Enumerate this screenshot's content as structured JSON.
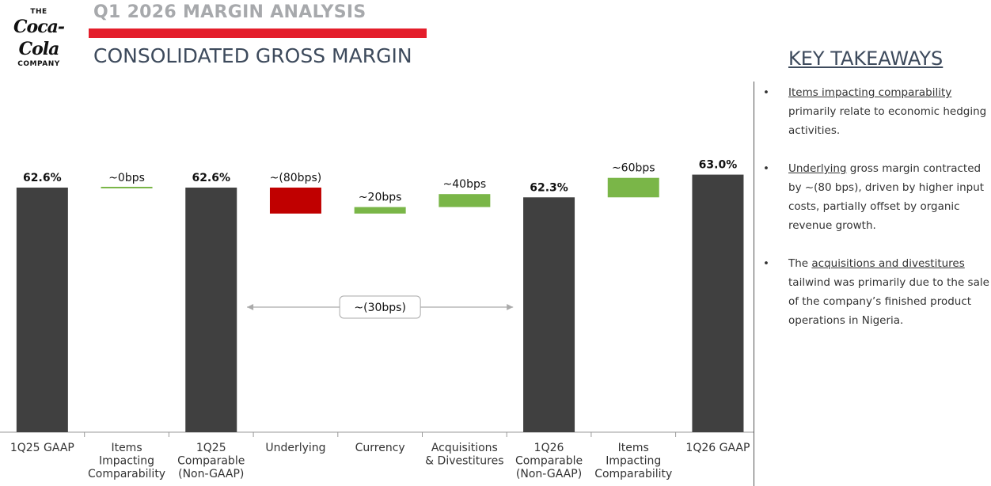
{
  "logo": {
    "line1": "THE",
    "line2": "Coca-Cola",
    "line3": "COMPANY"
  },
  "header": {
    "kicker": "Q1 2026 MARGIN ANALYSIS",
    "headline": "CONSOLIDATED GROSS MARGIN"
  },
  "colors": {
    "total": "#404040",
    "decrease": "#c00000",
    "increase": "#7ab648",
    "accent": "#e41e2b"
  },
  "takeaways": {
    "title": "KEY TAKEAWAYS",
    "items": [
      {
        "lead": "",
        "link": "Items impacting comparability",
        "rest": " primarily relate to economic hedging activities."
      },
      {
        "lead": "",
        "link": "Underlying",
        "rest": " gross margin contracted by ~(80 bps), driven by higher input costs, partially offset by organic revenue growth."
      },
      {
        "lead": "The ",
        "link": "acquisitions and divestitures",
        "rest": " tailwind was primarily due to the sale of the company’s finished product operations in Nigeria."
      }
    ]
  },
  "chart_data": {
    "type": "bar",
    "subtype": "waterfall",
    "unit": "% gross margin",
    "bars": [
      {
        "category": [
          "1Q25 GAAP"
        ],
        "kind": "total",
        "value": 62.6,
        "label": "62.6%"
      },
      {
        "category": [
          "Items",
          "Impacting",
          "Comparability"
        ],
        "kind": "delta",
        "value": 0.0,
        "label": "~0bps"
      },
      {
        "category": [
          "1Q25",
          "Comparable",
          "(Non-GAAP)"
        ],
        "kind": "total",
        "value": 62.6,
        "label": "62.6%"
      },
      {
        "category": [
          "Underlying"
        ],
        "kind": "delta",
        "value": -0.8,
        "label": "~(80bps)"
      },
      {
        "category": [
          "Currency"
        ],
        "kind": "delta",
        "value": 0.2,
        "label": "~20bps"
      },
      {
        "category": [
          "Acquisitions",
          "& Divestitures"
        ],
        "kind": "delta",
        "value": 0.4,
        "label": "~40bps"
      },
      {
        "category": [
          "1Q26",
          "Comparable",
          "(Non-GAAP)"
        ],
        "kind": "total",
        "value": 62.3,
        "label": "62.3%"
      },
      {
        "category": [
          "Items",
          "Impacting",
          "Comparability"
        ],
        "kind": "delta",
        "value": 0.6,
        "label": "~60bps"
      },
      {
        "category": [
          "1Q26 GAAP"
        ],
        "kind": "total",
        "value": 63.0,
        "label": "63.0%"
      }
    ],
    "annotation": {
      "label": "~(30bps)",
      "from_bar": 3,
      "to_bar": 5
    }
  }
}
